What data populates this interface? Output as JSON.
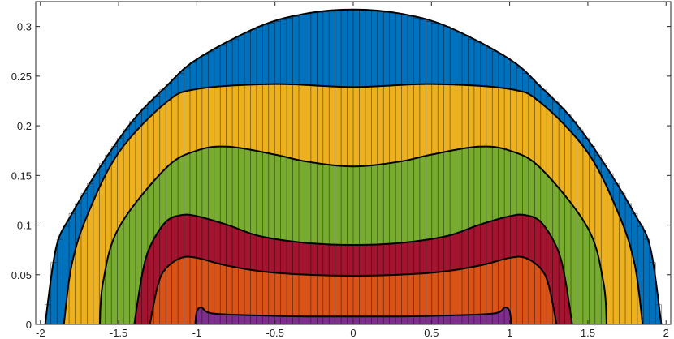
{
  "chart_data": {
    "type": "area",
    "title": "",
    "xlabel": "",
    "ylabel": "",
    "xlim": [
      -2.03,
      2.03
    ],
    "ylim": [
      0,
      0.325
    ],
    "x_ticks": [
      -2,
      -1.5,
      -1,
      -0.5,
      0,
      0.5,
      1,
      1.5,
      2
    ],
    "x_tick_labels": [
      "-2",
      "-1.5",
      "-1",
      "-0.5",
      "0",
      "0.5",
      "1",
      "1.5",
      "2"
    ],
    "y_ticks": [
      0,
      0.05,
      0.1,
      0.15,
      0.2,
      0.25,
      0.3
    ],
    "y_tick_labels": [
      "0",
      "0.05",
      "0.1",
      "0.15",
      "0.2",
      "0.25",
      "0.3"
    ],
    "grid": false,
    "bars": {
      "count": 104,
      "x_range": [
        -2.01,
        2.01
      ]
    },
    "layers": [
      {
        "color": "#0072BD",
        "x": [
          -1.97,
          -1.9,
          -1.8,
          -1.6,
          -1.4,
          -1.2,
          -1.0,
          -0.6,
          -0.3,
          0,
          0.3,
          0.6,
          1.0,
          1.2,
          1.4,
          1.6,
          1.8,
          1.9,
          1.97
        ],
        "top": [
          0.0,
          0.077,
          0.111,
          0.163,
          0.207,
          0.239,
          0.267,
          0.3,
          0.313,
          0.317,
          0.313,
          0.3,
          0.267,
          0.239,
          0.207,
          0.163,
          0.111,
          0.077,
          0.0
        ]
      },
      {
        "color": "#EDB120",
        "x": [
          -1.85,
          -1.8,
          -1.7,
          -1.5,
          -1.2,
          -1.0,
          -0.5,
          0,
          0.5,
          1.0,
          1.2,
          1.5,
          1.7,
          1.8,
          1.85
        ],
        "top": [
          0.0,
          0.06,
          0.11,
          0.173,
          0.223,
          0.237,
          0.242,
          0.239,
          0.242,
          0.237,
          0.223,
          0.173,
          0.11,
          0.06,
          0.0
        ]
      },
      {
        "color": "#77AC30",
        "x": [
          -1.62,
          -1.6,
          -1.5,
          -1.2,
          -1.0,
          -0.8,
          -0.5,
          -0.3,
          0,
          0.3,
          0.5,
          0.8,
          1.0,
          1.2,
          1.5,
          1.6,
          1.62
        ],
        "top": [
          0.0,
          0.042,
          0.097,
          0.157,
          0.175,
          0.179,
          0.171,
          0.164,
          0.159,
          0.164,
          0.171,
          0.179,
          0.175,
          0.157,
          0.097,
          0.042,
          0.0
        ]
      },
      {
        "color": "#A2142F",
        "x": [
          -1.4,
          -1.35,
          -1.3,
          -1.2,
          -1.1,
          -1.0,
          -0.8,
          -0.6,
          -0.3,
          0,
          0.3,
          0.6,
          0.8,
          1.0,
          1.1,
          1.2,
          1.3,
          1.35,
          1.4
        ],
        "top": [
          0.0,
          0.05,
          0.078,
          0.103,
          0.11,
          0.109,
          0.1,
          0.089,
          0.082,
          0.08,
          0.082,
          0.089,
          0.1,
          0.109,
          0.11,
          0.103,
          0.078,
          0.05,
          0.0
        ]
      },
      {
        "color": "#D95319",
        "x": [
          -1.3,
          -1.25,
          -1.2,
          -1.1,
          -1.0,
          -0.8,
          -0.5,
          0,
          0.5,
          0.8,
          1.0,
          1.1,
          1.2,
          1.25,
          1.3
        ],
        "top": [
          0.0,
          0.039,
          0.056,
          0.067,
          0.067,
          0.059,
          0.052,
          0.049,
          0.052,
          0.059,
          0.067,
          0.067,
          0.056,
          0.039,
          0.0
        ]
      },
      {
        "color": "#7E2F8E",
        "x": [
          -1.01,
          -1.0,
          -0.97,
          -0.9,
          -0.6,
          -0.3,
          0,
          0.3,
          0.6,
          0.9,
          0.97,
          1.0,
          1.01
        ],
        "top": [
          0.0,
          0.013,
          0.017,
          0.011,
          0.009,
          0.008,
          0.008,
          0.008,
          0.009,
          0.011,
          0.017,
          0.013,
          0.0
        ]
      }
    ]
  }
}
